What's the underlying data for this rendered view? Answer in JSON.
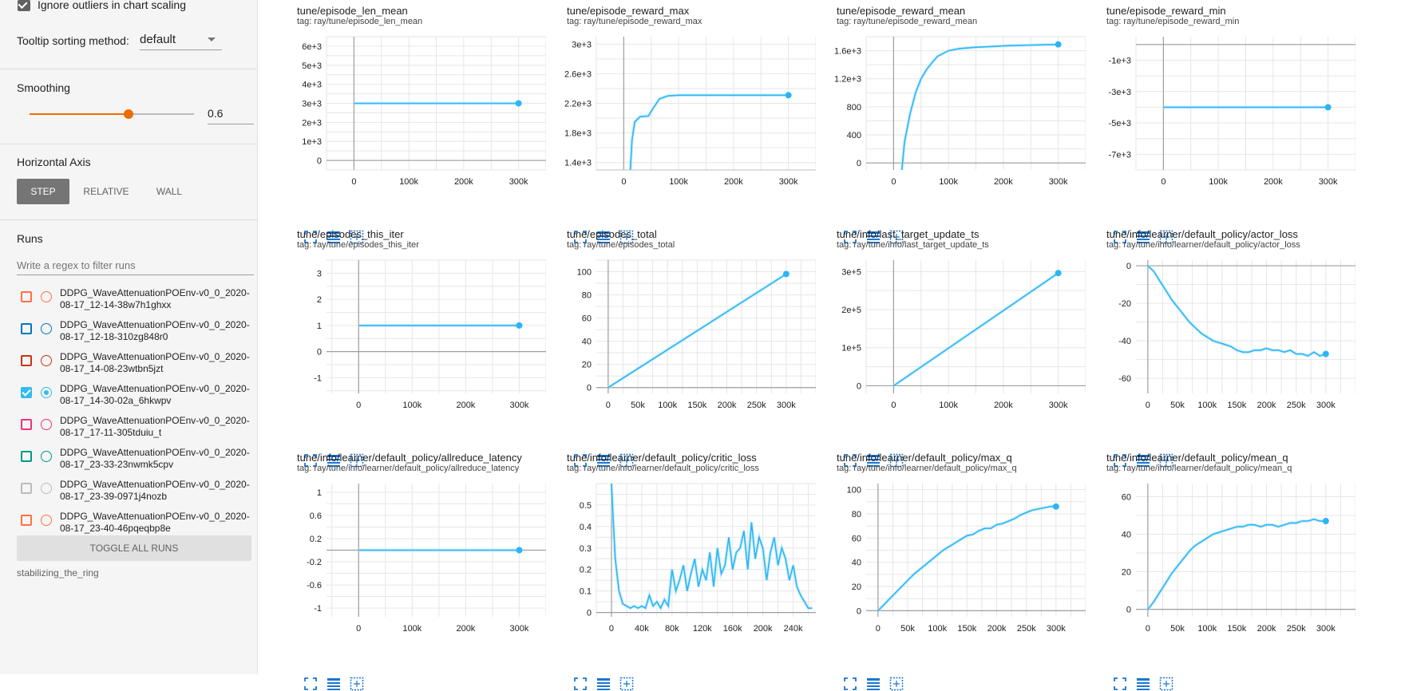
{
  "sidebar": {
    "ignore_outliers": {
      "label": "Ignore outliers in chart scaling",
      "checked": true
    },
    "tooltip_sorting": {
      "label": "Tooltip sorting method:",
      "value": "default"
    },
    "smoothing": {
      "label": "Smoothing",
      "value": "0.6",
      "fraction": 0.6
    },
    "horizontal_axis": {
      "label": "Horizontal Axis",
      "options": [
        "STEP",
        "RELATIVE",
        "WALL"
      ],
      "selected": "STEP"
    },
    "runs": {
      "label": "Runs",
      "filter_placeholder": "Write a regex to filter runs",
      "items": [
        {
          "line1": "DDPG_WaveAttenuationPOEnv-v0_0_2020-",
          "line2": "08-17_12-14-38w7h1ghxx",
          "color": "#ff7043",
          "checked": false
        },
        {
          "line1": "DDPG_WaveAttenuationPOEnv-v0_0_2020-",
          "line2": "08-17_12-18-310zg848r0",
          "color": "#0077bb",
          "checked": false
        },
        {
          "line1": "DDPG_WaveAttenuationPOEnv-v0_0_2020-",
          "line2": "08-17_14-08-23wtbn5jzt",
          "color": "#cc3311",
          "checked": false
        },
        {
          "line1": "DDPG_WaveAttenuationPOEnv-v0_0_2020-",
          "line2": "08-17_14-30-02a_6hkwpv",
          "color": "#33bbee",
          "checked": true
        },
        {
          "line1": "DDPG_WaveAttenuationPOEnv-v0_0_2020-",
          "line2": "08-17_17-11-305tduiu_t",
          "color": "#ee3377",
          "checked": false
        },
        {
          "line1": "DDPG_WaveAttenuationPOEnv-v0_0_2020-",
          "line2": "08-17_23-33-23nwmk5cpv",
          "color": "#009988",
          "checked": false
        },
        {
          "line1": "DDPG_WaveAttenuationPOEnv-v0_0_2020-",
          "line2": "08-17_23-39-0971j4nozb",
          "color": "#bbbbbb",
          "checked": false
        },
        {
          "line1": "DDPG_WaveAttenuationPOEnv-v0_0_2020-",
          "line2": "08-17_23-40-46pqeqbp8e",
          "color": "#ff7043",
          "checked": false
        }
      ],
      "toggle_all": "TOGGLE ALL RUNS",
      "footer": "stabilizing_the_ring"
    }
  },
  "colors": {
    "accent": "#ef6c00",
    "series": "#29b6f6",
    "series_light": "#b3e5fc",
    "tool_icon": "#1976d2"
  },
  "icons": {
    "tools": [
      "fullscreen-icon",
      "data-table-icon",
      "fit-domain-icon"
    ]
  },
  "charts": [
    {
      "title": "tune/episode_len_mean",
      "tag": "tag: ray/tune/episode_len_mean",
      "chart_data": {
        "type": "line",
        "xlim": [
          -50000,
          350000
        ],
        "ylim": [
          -500,
          6500
        ],
        "xticks": [
          0,
          100000,
          200000,
          300000
        ],
        "xtick_labels": [
          "0",
          "100k",
          "200k",
          "300k"
        ],
        "yticks": [
          0,
          1000,
          2000,
          3000,
          4000,
          5000,
          6000
        ],
        "ytick_labels": [
          "0",
          "1e+3",
          "2e+3",
          "3e+3",
          "4e+3",
          "5e+3",
          "6e+3"
        ],
        "x": [
          0,
          300000
        ],
        "y": [
          3000,
          3000
        ]
      }
    },
    {
      "title": "tune/episode_reward_max",
      "tag": "tag: ray/tune/episode_reward_max",
      "chart_data": {
        "type": "line",
        "xlim": [
          -50000,
          350000
        ],
        "ylim": [
          1300,
          3100
        ],
        "xticks": [
          0,
          100000,
          200000,
          300000
        ],
        "xtick_labels": [
          "0",
          "100k",
          "200k",
          "300k"
        ],
        "yticks": [
          1400,
          1800,
          2200,
          2600,
          3000
        ],
        "ytick_labels": [
          "1.4e+3",
          "1.8e+3",
          "2.2e+3",
          "2.6e+3",
          "3e+3"
        ],
        "x": [
          12000,
          15000,
          20000,
          30000,
          45000,
          55000,
          65000,
          80000,
          100000,
          150000,
          200000,
          250000,
          300000
        ],
        "y": [
          1300,
          1700,
          1950,
          2020,
          2030,
          2150,
          2260,
          2300,
          2310,
          2310,
          2310,
          2310,
          2310
        ]
      }
    },
    {
      "title": "tune/episode_reward_mean",
      "tag": "tag: ray/tune/episode_reward_mean",
      "chart_data": {
        "type": "line",
        "xlim": [
          -50000,
          350000
        ],
        "ylim": [
          -100,
          1800
        ],
        "xticks": [
          0,
          100000,
          200000,
          300000
        ],
        "xtick_labels": [
          "0",
          "100k",
          "200k",
          "300k"
        ],
        "yticks": [
          0,
          400,
          800,
          1200,
          1600
        ],
        "ytick_labels": [
          "0",
          "400",
          "800",
          "1.2e+3",
          "1.6e+3"
        ],
        "x": [
          15000,
          20000,
          30000,
          40000,
          50000,
          60000,
          70000,
          80000,
          100000,
          120000,
          150000,
          180000,
          200000,
          250000,
          300000
        ],
        "y": [
          -100,
          300,
          700,
          1000,
          1200,
          1330,
          1430,
          1520,
          1600,
          1630,
          1650,
          1660,
          1670,
          1680,
          1690
        ]
      }
    },
    {
      "title": "tune/episode_reward_min",
      "tag": "tag: ray/tune/episode_reward_min",
      "chart_data": {
        "type": "line",
        "xlim": [
          -50000,
          350000
        ],
        "ylim": [
          -8000,
          500
        ],
        "xticks": [
          0,
          100000,
          200000,
          300000
        ],
        "xtick_labels": [
          "0",
          "100k",
          "200k",
          "300k"
        ],
        "yticks": [
          -1000,
          -3000,
          -5000,
          -7000
        ],
        "ytick_labels": [
          "-1e+3",
          "-3e+3",
          "-5e+3",
          "-7e+3"
        ],
        "x": [
          0,
          300000
        ],
        "y": [
          -4000,
          -4000
        ]
      }
    },
    {
      "title": "tune/episodes_this_iter",
      "tag": "tag: ray/tune/episodes_this_iter",
      "chart_data": {
        "type": "line",
        "xlim": [
          -60000,
          350000
        ],
        "ylim": [
          -1.6,
          3.5
        ],
        "xticks": [
          0,
          100000,
          200000,
          300000
        ],
        "xtick_labels": [
          "0",
          "100k",
          "200k",
          "300k"
        ],
        "yticks": [
          -1,
          0,
          1,
          2,
          3
        ],
        "ytick_labels": [
          "-1",
          "0",
          "1",
          "2",
          "3"
        ],
        "x": [
          0,
          300000
        ],
        "y": [
          1,
          1
        ]
      }
    },
    {
      "title": "tune/episodes_total",
      "tag": "tag: ray/tune/episodes_total",
      "chart_data": {
        "type": "line",
        "xlim": [
          -20000,
          350000
        ],
        "ylim": [
          -5,
          110
        ],
        "xticks": [
          0,
          50000,
          100000,
          150000,
          200000,
          250000,
          300000
        ],
        "xtick_labels": [
          "0",
          "50k",
          "100k",
          "150k",
          "200k",
          "250k",
          "300k"
        ],
        "yticks": [
          0,
          20,
          40,
          60,
          80,
          100
        ],
        "ytick_labels": [
          "0",
          "20",
          "40",
          "60",
          "80",
          "100"
        ],
        "x": [
          0,
          300000
        ],
        "y": [
          0,
          98
        ]
      }
    },
    {
      "title": "tune/info/last_target_update_ts",
      "tag": "tag: ray/tune/info/last_target_update_ts",
      "chart_data": {
        "type": "line",
        "xlim": [
          -50000,
          350000
        ],
        "ylim": [
          -20000,
          330000
        ],
        "xticks": [
          0,
          100000,
          200000,
          300000
        ],
        "xtick_labels": [
          "0",
          "100k",
          "200k",
          "300k"
        ],
        "yticks": [
          0,
          100000,
          200000,
          300000
        ],
        "ytick_labels": [
          "0",
          "1e+5",
          "2e+5",
          "3e+5"
        ],
        "x": [
          0,
          300000
        ],
        "y": [
          0,
          296000
        ]
      }
    },
    {
      "title": "tune/info/learner/default_policy/actor_loss",
      "tag": "tag: ray/tune/info/learner/default_policy/actor_loss",
      "chart_data": {
        "type": "line",
        "xlim": [
          -20000,
          350000
        ],
        "ylim": [
          -68,
          3
        ],
        "xticks": [
          0,
          50000,
          100000,
          150000,
          200000,
          250000,
          300000
        ],
        "xtick_labels": [
          "0",
          "50k",
          "100k",
          "150k",
          "200k",
          "250k",
          "300k"
        ],
        "yticks": [
          0,
          -20,
          -40,
          -60
        ],
        "ytick_labels": [
          "0",
          "-20",
          "-40",
          "-60"
        ],
        "x": [
          0,
          10000,
          20000,
          30000,
          40000,
          50000,
          60000,
          70000,
          80000,
          90000,
          100000,
          110000,
          120000,
          130000,
          140000,
          150000,
          160000,
          170000,
          180000,
          190000,
          200000,
          210000,
          220000,
          230000,
          240000,
          250000,
          260000,
          270000,
          280000,
          290000,
          300000
        ],
        "y": [
          0,
          -3,
          -8,
          -13,
          -18,
          -22,
          -26,
          -30,
          -33,
          -36,
          -38,
          -40,
          -41,
          -42,
          -43,
          -45,
          -46,
          -46,
          -45,
          -45,
          -44,
          -45,
          -45,
          -46,
          -45,
          -47,
          -47,
          -48,
          -46,
          -48,
          -47
        ]
      }
    },
    {
      "title": "tune/info/learner/default_policy/allreduce_latency",
      "tag": "tag: ray/tune/info/learner/default_policy/allreduce_latency",
      "chart_data": {
        "type": "line",
        "xlim": [
          -60000,
          350000
        ],
        "ylim": [
          -1.15,
          1.15
        ],
        "xticks": [
          0,
          100000,
          200000,
          300000
        ],
        "xtick_labels": [
          "0",
          "100k",
          "200k",
          "300k"
        ],
        "yticks": [
          1,
          0.6,
          0.2,
          -0.2,
          -0.6,
          -1
        ],
        "ytick_labels": [
          "1",
          "0.6",
          "0.2",
          "-0.2",
          "-0.6",
          "-1"
        ],
        "x": [
          0,
          300000
        ],
        "y": [
          0,
          0
        ]
      }
    },
    {
      "title": "tune/info/learner/default_policy/critic_loss",
      "tag": "tag: ray/tune/info/learner/default_policy/critic_loss",
      "chart_data": {
        "type": "line",
        "xlim": [
          -20000,
          270000
        ],
        "ylim": [
          -0.02,
          0.6
        ],
        "xticks": [
          0,
          40000,
          80000,
          120000,
          160000,
          200000,
          240000
        ],
        "xtick_labels": [
          "0",
          "40k",
          "80k",
          "120k",
          "160k",
          "200k",
          "240k"
        ],
        "yticks": [
          0,
          0.1,
          0.2,
          0.3,
          0.4,
          0.5
        ],
        "ytick_labels": [
          "0",
          "0.1",
          "0.2",
          "0.3",
          "0.4",
          "0.5"
        ],
        "x": [
          0,
          2000,
          5000,
          10000,
          15000,
          20000,
          25000,
          30000,
          35000,
          40000,
          45000,
          50000,
          55000,
          60000,
          65000,
          70000,
          75000,
          80000,
          85000,
          90000,
          95000,
          100000,
          105000,
          110000,
          115000,
          120000,
          125000,
          130000,
          135000,
          140000,
          145000,
          150000,
          155000,
          160000,
          165000,
          170000,
          175000,
          180000,
          185000,
          190000,
          195000,
          200000,
          205000,
          210000,
          215000,
          220000,
          225000,
          230000,
          235000,
          240000,
          245000,
          250000,
          255000,
          260000,
          265000
        ],
        "y": [
          0.6,
          0.45,
          0.25,
          0.1,
          0.04,
          0.03,
          0.02,
          0.03,
          0.02,
          0.03,
          0.02,
          0.08,
          0.03,
          0.05,
          0.02,
          0.06,
          0.03,
          0.2,
          0.1,
          0.15,
          0.22,
          0.1,
          0.18,
          0.25,
          0.12,
          0.2,
          0.15,
          0.28,
          0.12,
          0.3,
          0.18,
          0.22,
          0.35,
          0.2,
          0.28,
          0.3,
          0.38,
          0.2,
          0.42,
          0.25,
          0.35,
          0.3,
          0.15,
          0.28,
          0.35,
          0.22,
          0.3,
          0.25,
          0.15,
          0.22,
          0.12,
          0.08,
          0.05,
          0.02,
          0.02
        ]
      }
    },
    {
      "title": "tune/info/learner/default_policy/max_q",
      "tag": "tag: ray/tune/info/learner/default_policy/max_q",
      "chart_data": {
        "type": "line",
        "xlim": [
          -20000,
          350000
        ],
        "ylim": [
          -5,
          105
        ],
        "xticks": [
          0,
          50000,
          100000,
          150000,
          200000,
          250000,
          300000
        ],
        "xtick_labels": [
          "0",
          "50k",
          "100k",
          "150k",
          "200k",
          "250k",
          "300k"
        ],
        "yticks": [
          0,
          20,
          40,
          60,
          80,
          100
        ],
        "ytick_labels": [
          "0",
          "20",
          "40",
          "60",
          "80",
          "100"
        ],
        "x": [
          0,
          10000,
          20000,
          30000,
          40000,
          50000,
          60000,
          70000,
          80000,
          90000,
          100000,
          110000,
          120000,
          130000,
          140000,
          150000,
          160000,
          170000,
          180000,
          190000,
          200000,
          210000,
          220000,
          230000,
          240000,
          250000,
          260000,
          270000,
          280000,
          290000,
          300000
        ],
        "y": [
          0,
          5,
          10,
          15,
          20,
          25,
          30,
          34,
          38,
          42,
          46,
          50,
          53,
          56,
          59,
          62,
          63,
          66,
          68,
          68,
          71,
          72,
          74,
          76,
          79,
          81,
          83,
          84,
          85,
          86,
          86
        ]
      }
    },
    {
      "title": "tune/info/learner/default_policy/mean_q",
      "tag": "tag: ray/tune/info/learner/default_policy/mean_q",
      "chart_data": {
        "type": "line",
        "xlim": [
          -20000,
          350000
        ],
        "ylim": [
          -4,
          67
        ],
        "xticks": [
          0,
          50000,
          100000,
          150000,
          200000,
          250000,
          300000
        ],
        "xtick_labels": [
          "0",
          "50k",
          "100k",
          "150k",
          "200k",
          "250k",
          "300k"
        ],
        "yticks": [
          0,
          20,
          40,
          60
        ],
        "ytick_labels": [
          "0",
          "20",
          "40",
          "60"
        ],
        "x": [
          0,
          10000,
          20000,
          30000,
          40000,
          50000,
          60000,
          70000,
          80000,
          90000,
          100000,
          110000,
          120000,
          130000,
          140000,
          150000,
          160000,
          170000,
          180000,
          190000,
          200000,
          210000,
          220000,
          230000,
          240000,
          250000,
          260000,
          270000,
          280000,
          290000,
          300000
        ],
        "y": [
          0,
          4,
          9,
          14,
          19,
          23,
          27,
          31,
          34,
          36,
          38,
          40,
          41,
          42,
          43,
          44,
          44,
          45,
          45,
          44,
          45,
          45,
          44,
          45,
          46,
          46,
          47,
          47,
          48,
          47,
          47
        ]
      }
    }
  ]
}
